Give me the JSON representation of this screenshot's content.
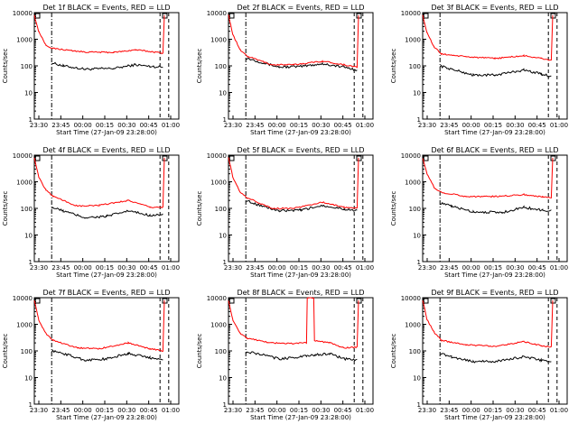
{
  "chart_data": {
    "type": "line",
    "yscale": "log",
    "ylim": [
      1,
      10000
    ],
    "x_ticks": [
      "23:30",
      "23:45",
      "00:00",
      "00:15",
      "00:30",
      "00:45",
      "01:00"
    ],
    "xlabel": "Start Time (27-Jan-09 23:28:00)",
    "ylabel": "Counts/sec",
    "y_ticks": [
      "1",
      "10",
      "100",
      "1000",
      "10000"
    ],
    "colors": {
      "events": "#000000",
      "lld": "#ff0000"
    },
    "panels": [
      {
        "title": "Det 1f BLACK = Events, RED = LLD",
        "red": [
          [
            0,
            8000
          ],
          [
            0.03,
            2000
          ],
          [
            0.08,
            600
          ],
          [
            0.13,
            450
          ],
          [
            0.35,
            330
          ],
          [
            0.55,
            320
          ],
          [
            0.7,
            400
          ],
          [
            0.83,
            330
          ],
          [
            0.89,
            300
          ],
          [
            0.9,
            8000
          ]
        ],
        "black": [
          [
            0.12,
            130
          ],
          [
            0.2,
            100
          ],
          [
            0.35,
            75
          ],
          [
            0.55,
            80
          ],
          [
            0.7,
            110
          ],
          [
            0.8,
            95
          ],
          [
            0.89,
            90
          ]
        ]
      },
      {
        "title": "Det 2f BLACK = Events, RED = LLD",
        "red": [
          [
            0,
            8000
          ],
          [
            0.03,
            1500
          ],
          [
            0.08,
            400
          ],
          [
            0.13,
            230
          ],
          [
            0.3,
            110
          ],
          [
            0.45,
            110
          ],
          [
            0.65,
            150
          ],
          [
            0.8,
            110
          ],
          [
            0.89,
            90
          ],
          [
            0.9,
            8000
          ]
        ],
        "black": [
          [
            0.12,
            200
          ],
          [
            0.2,
            150
          ],
          [
            0.35,
            90
          ],
          [
            0.5,
            95
          ],
          [
            0.65,
            120
          ],
          [
            0.8,
            90
          ],
          [
            0.89,
            70
          ]
        ]
      },
      {
        "title": "Det 3f BLACK = Events, RED = LLD",
        "red": [
          [
            0,
            8000
          ],
          [
            0.03,
            1800
          ],
          [
            0.08,
            500
          ],
          [
            0.13,
            280
          ],
          [
            0.3,
            220
          ],
          [
            0.5,
            190
          ],
          [
            0.7,
            240
          ],
          [
            0.82,
            190
          ],
          [
            0.89,
            160
          ],
          [
            0.9,
            8000
          ]
        ],
        "black": [
          [
            0.12,
            100
          ],
          [
            0.2,
            75
          ],
          [
            0.35,
            45
          ],
          [
            0.5,
            45
          ],
          [
            0.7,
            70
          ],
          [
            0.82,
            50
          ],
          [
            0.89,
            40
          ]
        ]
      },
      {
        "title": "Det 4f BLACK = Events, RED = LLD",
        "red": [
          [
            0,
            8000
          ],
          [
            0.03,
            1500
          ],
          [
            0.08,
            500
          ],
          [
            0.13,
            280
          ],
          [
            0.3,
            120
          ],
          [
            0.45,
            130
          ],
          [
            0.65,
            200
          ],
          [
            0.8,
            110
          ],
          [
            0.89,
            110
          ],
          [
            0.9,
            8000
          ]
        ],
        "black": [
          [
            0.12,
            110
          ],
          [
            0.2,
            80
          ],
          [
            0.35,
            45
          ],
          [
            0.5,
            50
          ],
          [
            0.65,
            80
          ],
          [
            0.8,
            55
          ],
          [
            0.89,
            60
          ]
        ]
      },
      {
        "title": "Det 5f BLACK = Events, RED = LLD",
        "red": [
          [
            0,
            8000
          ],
          [
            0.03,
            1500
          ],
          [
            0.08,
            400
          ],
          [
            0.13,
            250
          ],
          [
            0.3,
            100
          ],
          [
            0.45,
            100
          ],
          [
            0.65,
            170
          ],
          [
            0.8,
            110
          ],
          [
            0.89,
            100
          ],
          [
            0.9,
            8000
          ]
        ],
        "black": [
          [
            0.12,
            200
          ],
          [
            0.2,
            140
          ],
          [
            0.35,
            80
          ],
          [
            0.5,
            85
          ],
          [
            0.65,
            130
          ],
          [
            0.8,
            95
          ],
          [
            0.89,
            80
          ]
        ]
      },
      {
        "title": "Det 6f BLACK = Events, RED = LLD",
        "red": [
          [
            0,
            8000
          ],
          [
            0.03,
            2000
          ],
          [
            0.08,
            600
          ],
          [
            0.13,
            400
          ],
          [
            0.3,
            280
          ],
          [
            0.5,
            280
          ],
          [
            0.7,
            330
          ],
          [
            0.83,
            270
          ],
          [
            0.89,
            250
          ],
          [
            0.9,
            8000
          ]
        ],
        "black": [
          [
            0.12,
            160
          ],
          [
            0.2,
            120
          ],
          [
            0.35,
            75
          ],
          [
            0.55,
            70
          ],
          [
            0.7,
            110
          ],
          [
            0.83,
            85
          ],
          [
            0.89,
            80
          ]
        ]
      },
      {
        "title": "Det 7f BLACK = Events, RED = LLD",
        "red": [
          [
            0,
            8000
          ],
          [
            0.03,
            1500
          ],
          [
            0.08,
            450
          ],
          [
            0.13,
            250
          ],
          [
            0.3,
            130
          ],
          [
            0.45,
            120
          ],
          [
            0.65,
            200
          ],
          [
            0.8,
            120
          ],
          [
            0.89,
            100
          ],
          [
            0.9,
            8000
          ]
        ],
        "black": [
          [
            0.12,
            100
          ],
          [
            0.2,
            80
          ],
          [
            0.35,
            45
          ],
          [
            0.5,
            50
          ],
          [
            0.65,
            80
          ],
          [
            0.8,
            55
          ],
          [
            0.89,
            50
          ]
        ]
      },
      {
        "title": "Det 8f BLACK = Events, RED = LLD",
        "red": [
          [
            0,
            8000
          ],
          [
            0.03,
            1500
          ],
          [
            0.08,
            450
          ],
          [
            0.13,
            300
          ],
          [
            0.3,
            200
          ],
          [
            0.45,
            190
          ],
          [
            0.54,
            200
          ],
          [
            0.545,
            10000
          ],
          [
            0.59,
            10000
          ],
          [
            0.595,
            250
          ],
          [
            0.7,
            200
          ],
          [
            0.8,
            130
          ],
          [
            0.89,
            140
          ],
          [
            0.9,
            8000
          ]
        ],
        "black": [
          [
            0.12,
            90
          ],
          [
            0.2,
            80
          ],
          [
            0.35,
            50
          ],
          [
            0.5,
            60
          ],
          [
            0.54,
            65
          ],
          [
            0.6,
            70
          ],
          [
            0.7,
            80
          ],
          [
            0.8,
            50
          ],
          [
            0.89,
            45
          ]
        ]
      },
      {
        "title": "Det 9f BLACK = Events, RED = LLD",
        "red": [
          [
            0,
            8000
          ],
          [
            0.03,
            1500
          ],
          [
            0.08,
            500
          ],
          [
            0.13,
            250
          ],
          [
            0.3,
            170
          ],
          [
            0.5,
            150
          ],
          [
            0.7,
            220
          ],
          [
            0.82,
            160
          ],
          [
            0.89,
            140
          ],
          [
            0.9,
            8000
          ]
        ],
        "black": [
          [
            0.12,
            80
          ],
          [
            0.2,
            60
          ],
          [
            0.35,
            40
          ],
          [
            0.5,
            40
          ],
          [
            0.7,
            60
          ],
          [
            0.82,
            45
          ],
          [
            0.89,
            40
          ]
        ]
      }
    ]
  }
}
